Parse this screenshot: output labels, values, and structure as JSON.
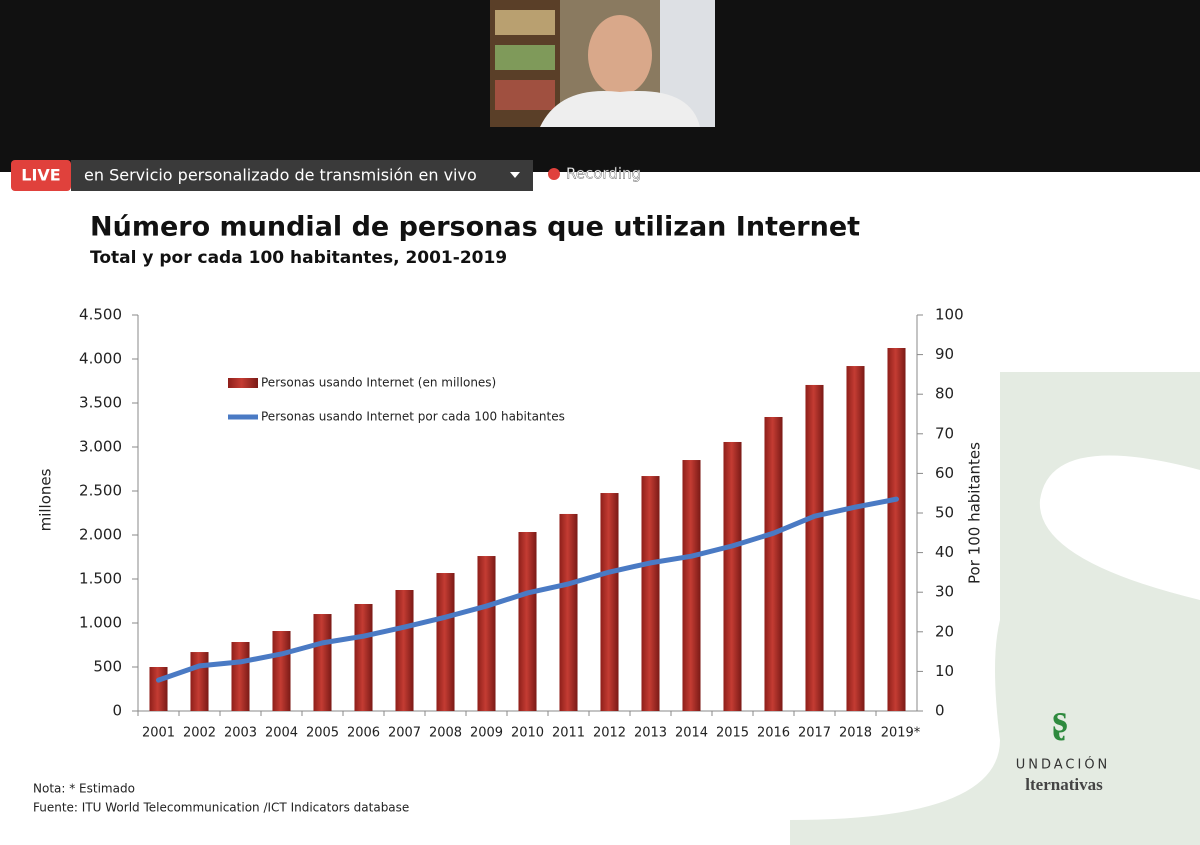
{
  "ui": {
    "live": "LIVE",
    "stream_name": "en Servicio personalizado de transmisión en vivo",
    "recording": "Recording"
  },
  "chart_data": {
    "type": "bar_line",
    "title": "Número mundial de personas que utilizan Internet",
    "subtitle": "Total y por cada 100 habitantes, 2001-2019",
    "ylabel": "millones",
    "y2label": "Por 100 habitantes",
    "categories": [
      "2001",
      "2002",
      "2003",
      "2004",
      "2005",
      "2006",
      "2007",
      "2008",
      "2009",
      "2010",
      "2011",
      "2012",
      "2013",
      "2014",
      "2015",
      "2016",
      "2017",
      "2018",
      "2019*"
    ],
    "series": [
      {
        "name": "Personas usando Internet (en millones)",
        "type": "bar",
        "color": "#c43c33",
        "values": [
          500,
          670,
          784,
          909,
          1102,
          1216,
          1375,
          1568,
          1761,
          2034,
          2239,
          2477,
          2670,
          2852,
          3057,
          3341,
          3705,
          3920,
          4125
        ]
      },
      {
        "name": "Personas usando Internet  por cada 100 habitantes",
        "type": "line",
        "axis": "y2",
        "color": "#4a7ac4",
        "values": [
          7.8,
          11.4,
          12.4,
          14.4,
          17.2,
          18.9,
          21.2,
          23.7,
          26.5,
          29.8,
          32.1,
          35.1,
          37.4,
          39.1,
          41.7,
          44.9,
          49.2,
          51.5,
          53.5
        ]
      }
    ],
    "ylim": [
      0,
      4500
    ],
    "yticks": [
      0,
      500,
      {
        "value": 1000,
        "label": "1.000"
      },
      {
        "value": 1500,
        "label": "1.500"
      },
      {
        "value": 2000,
        "label": "2.000"
      },
      {
        "value": 2500,
        "label": "2.500"
      },
      {
        "value": 3000,
        "label": "3.000"
      },
      {
        "value": 3500,
        "label": "3.500"
      },
      {
        "value": 4000,
        "label": "4.000"
      },
      {
        "value": 4500,
        "label": "4.500"
      }
    ],
    "y2lim": [
      0,
      100
    ],
    "y2ticks": [
      0,
      10,
      20,
      30,
      40,
      50,
      60,
      70,
      80,
      90,
      100
    ],
    "legend": "upper left"
  },
  "notes": [
    "Nota: * Estimado",
    "Fuente:  ITU World Telecommunication /ICT Indicators database"
  ],
  "logo": {
    "line1": "UNDACIÓN",
    "line2": "lternativas"
  }
}
